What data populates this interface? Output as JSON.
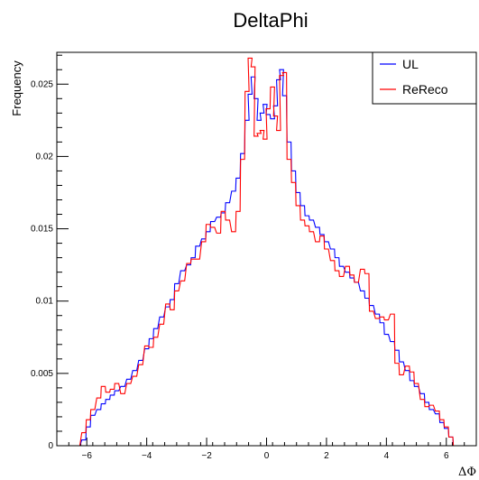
{
  "chart_data": {
    "type": "histogram",
    "title": "DeltaPhi",
    "xlabel": "ΔΦ",
    "ylabel": "Frequency",
    "xlim": [
      -7.0,
      7.0
    ],
    "ylim": [
      0,
      0.0272
    ],
    "x_ticks": [
      -6,
      -4,
      -2,
      0,
      2,
      4,
      6
    ],
    "y_ticks": [
      0,
      0.005,
      0.01,
      0.015,
      0.02,
      0.025
    ],
    "x_tick_labels": [
      "−6",
      "−4",
      "−2",
      "0",
      "2",
      "4",
      "6"
    ],
    "y_tick_labels": [
      "0",
      "0.005",
      "0.01",
      "0.015",
      "0.02",
      "0.025"
    ],
    "bin_width": 0.1333,
    "legend": {
      "position": "top-right",
      "entries": [
        "UL",
        "ReReco"
      ]
    },
    "series": [
      {
        "name": "UL",
        "color": "#0000ff",
        "points": [
          [
            -6.3,
            0
          ],
          [
            -6.1,
            0.0004
          ],
          [
            -5.95,
            0.0013
          ],
          [
            -5.8,
            0.0021
          ],
          [
            -5.6,
            0.0025
          ],
          [
            -5.45,
            0.0029
          ],
          [
            -5.3,
            0.0032
          ],
          [
            -5.15,
            0.0035
          ],
          [
            -5.0,
            0.0038
          ],
          [
            -4.8,
            0.0041
          ],
          [
            -4.6,
            0.0046
          ],
          [
            -4.4,
            0.0052
          ],
          [
            -4.2,
            0.0059
          ],
          [
            -4.0,
            0.0067
          ],
          [
            -3.85,
            0.0074
          ],
          [
            -3.7,
            0.0081
          ],
          [
            -3.5,
            0.0089
          ],
          [
            -3.3,
            0.0096
          ],
          [
            -3.15,
            0.0101
          ],
          [
            -3.0,
            0.0112
          ],
          [
            -2.8,
            0.0121
          ],
          [
            -2.6,
            0.0125
          ],
          [
            -2.45,
            0.013
          ],
          [
            -2.3,
            0.0138
          ],
          [
            -2.1,
            0.0143
          ],
          [
            -1.95,
            0.0148
          ],
          [
            -1.8,
            0.0155
          ],
          [
            -1.6,
            0.0158
          ],
          [
            -1.45,
            0.0161
          ],
          [
            -1.3,
            0.0168
          ],
          [
            -1.1,
            0.0176
          ],
          [
            -0.95,
            0.0185
          ],
          [
            -0.8,
            0.0202
          ],
          [
            -0.65,
            0.0225
          ],
          [
            -0.55,
            0.0243
          ],
          [
            -0.45,
            0.0255
          ],
          [
            -0.35,
            0.024
          ],
          [
            -0.25,
            0.0225
          ],
          [
            -0.15,
            0.023
          ],
          [
            -0.05,
            0.0236
          ],
          [
            0.05,
            0.0229
          ],
          [
            0.2,
            0.0226
          ],
          [
            0.3,
            0.0235
          ],
          [
            0.4,
            0.0253
          ],
          [
            0.5,
            0.026
          ],
          [
            0.6,
            0.0242
          ],
          [
            0.75,
            0.021
          ],
          [
            0.9,
            0.019
          ],
          [
            1.05,
            0.0175
          ],
          [
            1.2,
            0.0166
          ],
          [
            1.35,
            0.0159
          ],
          [
            1.5,
            0.0156
          ],
          [
            1.7,
            0.0151
          ],
          [
            1.85,
            0.0146
          ],
          [
            2.0,
            0.0141
          ],
          [
            2.2,
            0.0136
          ],
          [
            2.35,
            0.013
          ],
          [
            2.5,
            0.0124
          ],
          [
            2.7,
            0.012
          ],
          [
            2.85,
            0.0116
          ],
          [
            3.0,
            0.0113
          ],
          [
            3.2,
            0.0107
          ],
          [
            3.35,
            0.0102
          ],
          [
            3.5,
            0.0097
          ],
          [
            3.7,
            0.0091
          ],
          [
            3.85,
            0.0085
          ],
          [
            4.0,
            0.0077
          ],
          [
            4.2,
            0.0072
          ],
          [
            4.35,
            0.0066
          ],
          [
            4.5,
            0.0058
          ],
          [
            4.7,
            0.0052
          ],
          [
            4.85,
            0.0045
          ],
          [
            5.0,
            0.0041
          ],
          [
            5.2,
            0.0036
          ],
          [
            5.35,
            0.003
          ],
          [
            5.5,
            0.0025
          ],
          [
            5.7,
            0.0022
          ],
          [
            5.85,
            0.0016
          ],
          [
            6.0,
            0.0012
          ],
          [
            6.15,
            0.0006
          ],
          [
            6.3,
            0.0
          ]
        ]
      },
      {
        "name": "ReReco",
        "color": "#ff0000",
        "points": [
          [
            -6.3,
            0
          ],
          [
            -6.1,
            0.0009
          ],
          [
            -5.95,
            0.0018
          ],
          [
            -5.8,
            0.0025
          ],
          [
            -5.6,
            0.0033
          ],
          [
            -5.45,
            0.0041
          ],
          [
            -5.3,
            0.0037
          ],
          [
            -5.15,
            0.0039
          ],
          [
            -5.0,
            0.0043
          ],
          [
            -4.8,
            0.0036
          ],
          [
            -4.6,
            0.0043
          ],
          [
            -4.4,
            0.0048
          ],
          [
            -4.2,
            0.0056
          ],
          [
            -4.0,
            0.0069
          ],
          [
            -3.85,
            0.0068
          ],
          [
            -3.7,
            0.0075
          ],
          [
            -3.5,
            0.0084
          ],
          [
            -3.3,
            0.0098
          ],
          [
            -3.15,
            0.0094
          ],
          [
            -3.0,
            0.0107
          ],
          [
            -2.8,
            0.0114
          ],
          [
            -2.6,
            0.0126
          ],
          [
            -2.45,
            0.0129
          ],
          [
            -2.3,
            0.0129
          ],
          [
            -2.1,
            0.0141
          ],
          [
            -1.95,
            0.0153
          ],
          [
            -1.8,
            0.0151
          ],
          [
            -1.6,
            0.0147
          ],
          [
            -1.45,
            0.0162
          ],
          [
            -1.3,
            0.0156
          ],
          [
            -1.1,
            0.0148
          ],
          [
            -0.95,
            0.0162
          ],
          [
            -0.8,
            0.0198
          ],
          [
            -0.65,
            0.0245
          ],
          [
            -0.55,
            0.0268
          ],
          [
            -0.45,
            0.0262
          ],
          [
            -0.35,
            0.0214
          ],
          [
            -0.25,
            0.0216
          ],
          [
            -0.15,
            0.0218
          ],
          [
            -0.05,
            0.0212
          ],
          [
            0.05,
            0.0233
          ],
          [
            0.2,
            0.0248
          ],
          [
            0.3,
            0.0228
          ],
          [
            0.4,
            0.0218
          ],
          [
            0.5,
            0.0256
          ],
          [
            0.6,
            0.0258
          ],
          [
            0.75,
            0.0198
          ],
          [
            0.9,
            0.0182
          ],
          [
            1.05,
            0.0166
          ],
          [
            1.2,
            0.0156
          ],
          [
            1.35,
            0.0152
          ],
          [
            1.5,
            0.0148
          ],
          [
            1.7,
            0.0141
          ],
          [
            1.85,
            0.0145
          ],
          [
            2.0,
            0.0136
          ],
          [
            2.2,
            0.0128
          ],
          [
            2.35,
            0.0121
          ],
          [
            2.5,
            0.0117
          ],
          [
            2.7,
            0.0124
          ],
          [
            2.85,
            0.0118
          ],
          [
            3.0,
            0.0113
          ],
          [
            3.2,
            0.0122
          ],
          [
            3.35,
            0.0119
          ],
          [
            3.5,
            0.0093
          ],
          [
            3.7,
            0.0088
          ],
          [
            3.85,
            0.0089
          ],
          [
            4.0,
            0.0087
          ],
          [
            4.2,
            0.0091
          ],
          [
            4.35,
            0.0057
          ],
          [
            4.5,
            0.0049
          ],
          [
            4.7,
            0.0055
          ],
          [
            4.85,
            0.0051
          ],
          [
            5.0,
            0.0043
          ],
          [
            5.2,
            0.0032
          ],
          [
            5.35,
            0.0027
          ],
          [
            5.5,
            0.0028
          ],
          [
            5.7,
            0.0024
          ],
          [
            5.85,
            0.0018
          ],
          [
            6.0,
            0.0013
          ],
          [
            6.15,
            0.0006
          ],
          [
            6.3,
            0.0
          ]
        ]
      }
    ]
  }
}
